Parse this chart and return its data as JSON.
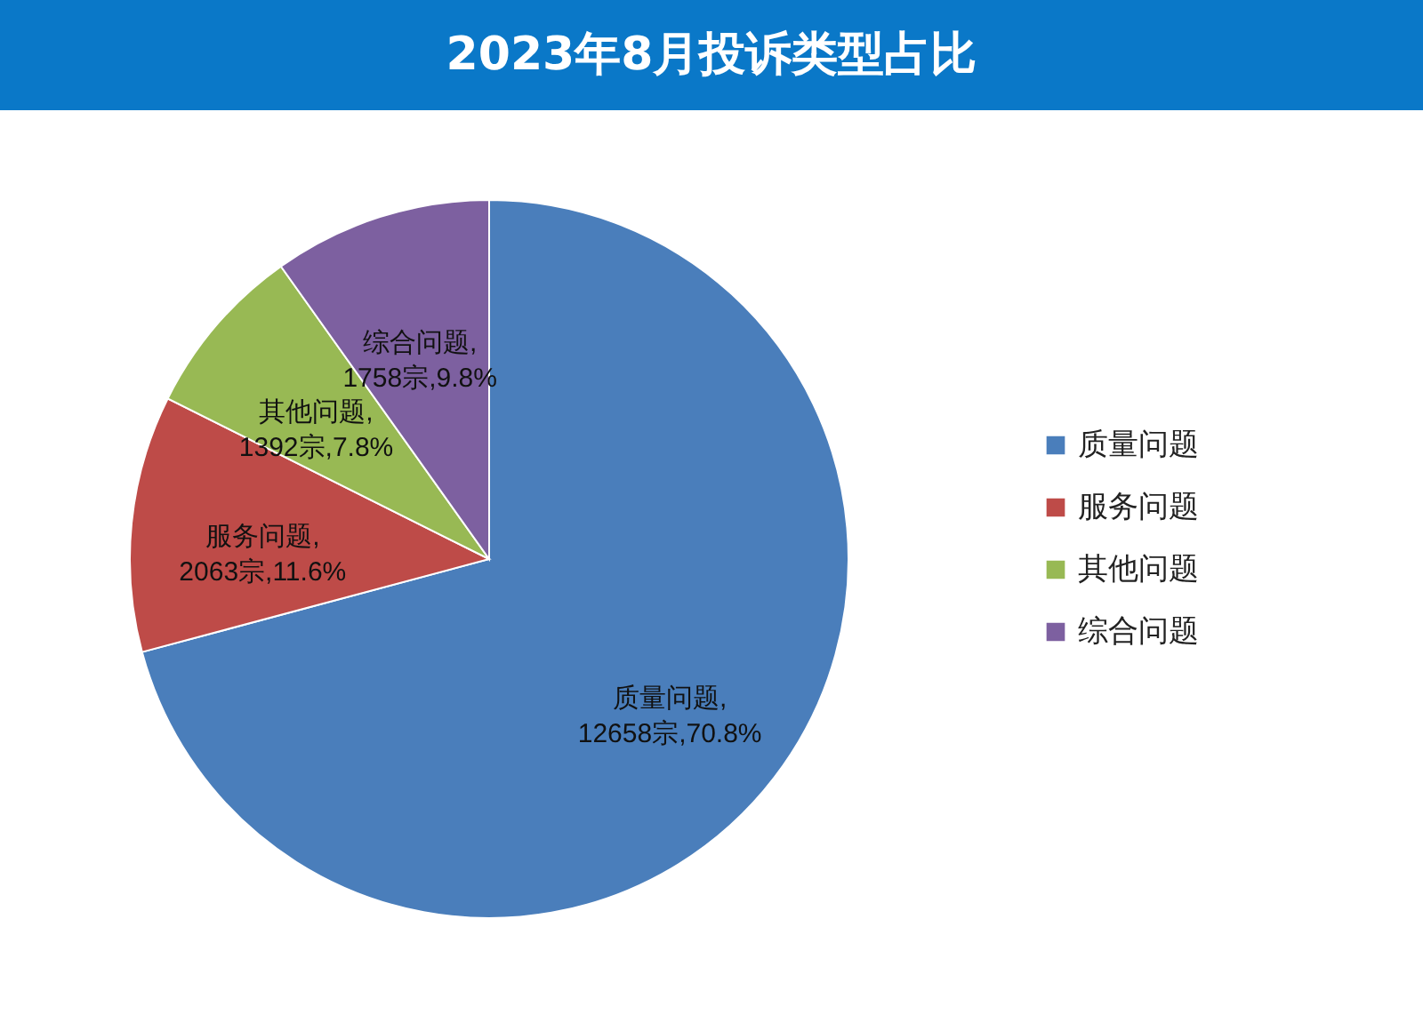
{
  "chart_data": {
    "type": "pie",
    "title": "2023年8月投诉类型占比",
    "categories": [
      "质量问题",
      "服务问题",
      "其他问题",
      "综合问题"
    ],
    "values": [
      12658,
      2063,
      1392,
      1758
    ],
    "value_labels": [
      "质量问题,12658宗,70.8%",
      "服务问题,2063宗,11.6%",
      "其他问题,1392宗,7.8%",
      "综合问题,1758宗,9.8%"
    ],
    "colors": [
      "#4a7ebb",
      "#be4b48",
      "#98b954",
      "#7d60a0"
    ],
    "legend": "right"
  }
}
